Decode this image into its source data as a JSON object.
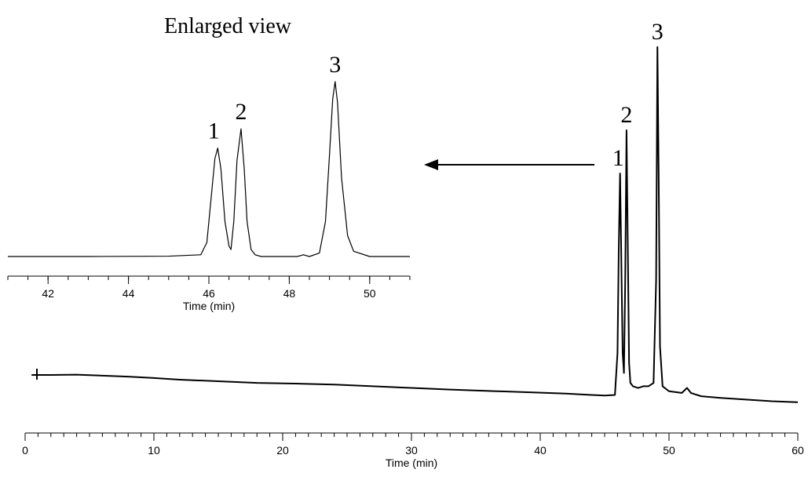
{
  "chart_data": [
    {
      "type": "line",
      "xlabel": "Time (min)",
      "ylabel": "",
      "xlim": [
        0,
        60
      ],
      "x_ticks": [
        "0",
        "10",
        "20",
        "30",
        "40",
        "50",
        "60"
      ],
      "series": [
        {
          "x": [
            0.5,
            2,
            4,
            6,
            8,
            10,
            12,
            15,
            18,
            21,
            24,
            27,
            30,
            33,
            36,
            39,
            42,
            44,
            45,
            45.8,
            46.0,
            46.1,
            46.2,
            46.3,
            46.4,
            46.5,
            46.6,
            46.7,
            46.8,
            46.9,
            47.0,
            47.2,
            47.6,
            48.0,
            48.4,
            48.8,
            49.0,
            49.1,
            49.2,
            49.3,
            49.5,
            50.0,
            51.0,
            51.4,
            51.7,
            52.5,
            54,
            56,
            58,
            60
          ],
          "y": [
            0.014,
            0.014,
            0.015,
            0.012,
            0.009,
            0.005,
            0.0,
            -0.005,
            -0.01,
            -0.012,
            -0.015,
            -0.02,
            -0.025,
            -0.03,
            -0.034,
            -0.038,
            -0.042,
            -0.046,
            -0.048,
            -0.046,
            0.08,
            0.4,
            0.62,
            0.35,
            0.08,
            0.02,
            0.3,
            0.75,
            0.4,
            0.05,
            -0.01,
            -0.02,
            -0.025,
            -0.02,
            -0.02,
            -0.01,
            0.3,
            1.0,
            0.6,
            0.1,
            -0.02,
            -0.035,
            -0.04,
            -0.025,
            -0.04,
            -0.05,
            -0.055,
            -0.06,
            -0.065,
            -0.068
          ]
        }
      ],
      "annotations": [
        "1",
        "2",
        "3"
      ]
    },
    {
      "type": "line",
      "title": "Enlarged view",
      "xlabel": "Time (min)",
      "xlim": [
        41,
        51
      ],
      "x_ticks": [
        "42",
        "44",
        "46",
        "48",
        "50"
      ],
      "series": [
        {
          "x": [
            41,
            43,
            45,
            45.8,
            45.95,
            46.05,
            46.15,
            46.22,
            46.3,
            46.4,
            46.5,
            46.55,
            46.62,
            46.7,
            46.8,
            46.88,
            46.95,
            47.05,
            47.15,
            47.3,
            47.8,
            48.2,
            48.35,
            48.5,
            48.75,
            48.9,
            49.0,
            49.08,
            49.14,
            49.2,
            49.3,
            49.45,
            49.6,
            50,
            51
          ],
          "y": [
            0.0,
            0.0,
            0.002,
            0.01,
            0.08,
            0.32,
            0.56,
            0.62,
            0.5,
            0.2,
            0.06,
            0.04,
            0.2,
            0.55,
            0.73,
            0.5,
            0.2,
            0.04,
            0.01,
            0.0,
            0.0,
            0.0,
            0.01,
            0.0,
            0.02,
            0.2,
            0.58,
            0.9,
            1.0,
            0.88,
            0.45,
            0.12,
            0.03,
            0.0,
            0.0
          ]
        }
      ],
      "annotations": [
        "1",
        "2",
        "3"
      ]
    }
  ]
}
